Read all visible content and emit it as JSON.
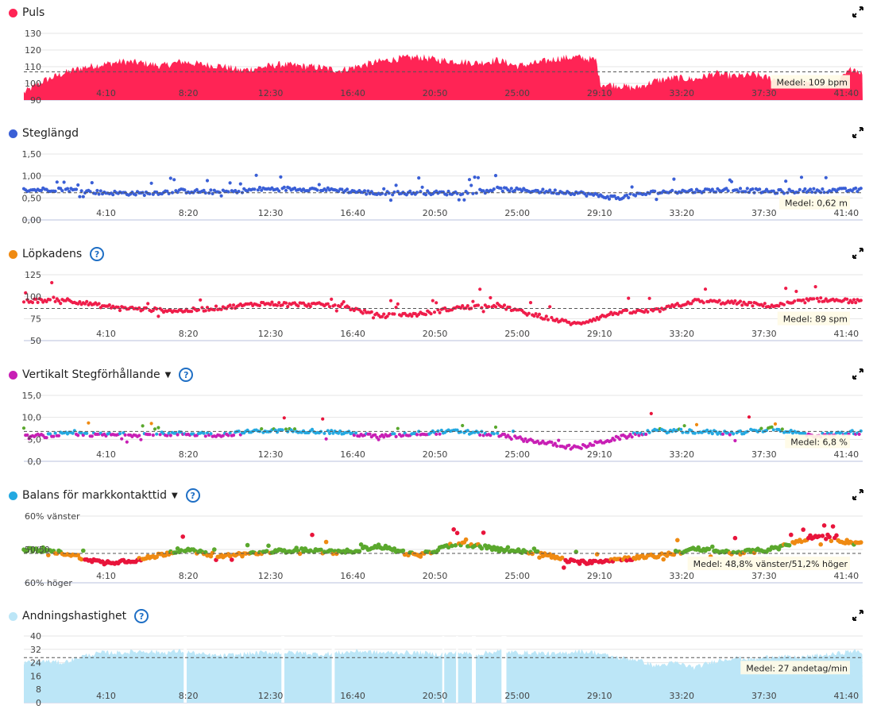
{
  "chart_data": [
    {
      "type": "area",
      "title": "Puls",
      "color": "#ff2455",
      "yticks": [
        "130",
        "120",
        "110",
        "100",
        "90"
      ],
      "ylim": [
        90,
        135
      ],
      "xticks": [
        "4:10",
        "8:20",
        "12:30",
        "16:40",
        "20:50",
        "25:00",
        "29:10",
        "33:20",
        "37:30",
        "41:40"
      ],
      "x_range": [
        "0:00",
        "42:30"
      ],
      "average": 109,
      "average_label": "Medel: 109 bpm",
      "series": [
        {
          "x": [
            0,
            1,
            2,
            3,
            4,
            5,
            6,
            7,
            8,
            9,
            10,
            11,
            12,
            13,
            14,
            15,
            16,
            17,
            18,
            19,
            20,
            21,
            22,
            23,
            24,
            25,
            26,
            27,
            28,
            29,
            29.2,
            30,
            31,
            32,
            33,
            34,
            35,
            36,
            37,
            38,
            39,
            40,
            41,
            42,
            42.5
          ],
          "values": [
            95,
            103,
            108,
            112,
            114,
            116,
            115,
            113,
            116,
            114,
            113,
            110,
            112,
            114,
            113,
            112,
            110,
            113,
            116,
            118,
            119,
            117,
            116,
            115,
            117,
            113,
            115,
            118,
            119,
            117,
            101,
            100,
            98,
            103,
            105,
            104,
            108,
            106,
            107,
            104,
            102,
            101,
            99,
            112,
            108
          ]
        }
      ]
    },
    {
      "type": "scatter",
      "title": "Steglängd",
      "color": "#3a5fd6",
      "yticks": [
        "1,50",
        "1,00",
        "0,50",
        "0,00"
      ],
      "ylim": [
        0,
        1.5
      ],
      "xticks": [
        "4:10",
        "8:20",
        "12:30",
        "16:40",
        "20:50",
        "25:00",
        "29:10",
        "33:20",
        "37:30",
        "41:40"
      ],
      "average": 0.62,
      "average_label": "Medel: 0,62 m",
      "series": [
        {
          "x": [
            0,
            2,
            4,
            6,
            8,
            10,
            12,
            14,
            16,
            18,
            20,
            22,
            24,
            26,
            28,
            30,
            32,
            34,
            36,
            38,
            40,
            42
          ],
          "values": [
            0.68,
            0.7,
            0.62,
            0.6,
            0.66,
            0.63,
            0.7,
            0.71,
            0.68,
            0.6,
            0.62,
            0.61,
            0.7,
            0.66,
            0.62,
            0.5,
            0.63,
            0.66,
            0.69,
            0.64,
            0.67,
            0.68
          ]
        }
      ]
    },
    {
      "type": "scatter",
      "title": "Löpkadens",
      "help": "?",
      "color": "#ef1d4a",
      "yticks": [
        "125",
        "100",
        "75",
        "50"
      ],
      "ylim": [
        50,
        130
      ],
      "xticks": [
        "4:10",
        "8:20",
        "12:30",
        "16:40",
        "20:50",
        "25:00",
        "29:10",
        "33:20",
        "37:30",
        "41:40"
      ],
      "average": 89,
      "average_label": "Medel: 89 spm",
      "series": [
        {
          "x": [
            0,
            2,
            4,
            6,
            8,
            10,
            12,
            14,
            16,
            18,
            20,
            22,
            24,
            26,
            28,
            30,
            32,
            34,
            36,
            38,
            40,
            42
          ],
          "values": [
            98,
            100,
            92,
            88,
            86,
            90,
            95,
            94,
            93,
            80,
            82,
            90,
            93,
            80,
            70,
            84,
            86,
            98,
            96,
            92,
            100,
            98
          ]
        }
      ]
    },
    {
      "type": "scatter",
      "title": "Vertikalt Stegförhållande",
      "help": "?",
      "caret": "▼",
      "colors": [
        "#24a9e1",
        "#c81fb5",
        "#e8143b",
        "#5aa82d",
        "#ef8a12"
      ],
      "yticks": [
        "15,0",
        "10,0",
        "5,0",
        "0,0"
      ],
      "ylim": [
        0,
        15
      ],
      "xticks": [
        "4:10",
        "8:20",
        "12:30",
        "16:40",
        "20:50",
        "25:00",
        "29:10",
        "33:20",
        "37:30",
        "41:40"
      ],
      "average": 6.8,
      "average_label": "Medel: 6,8 %",
      "series": [
        {
          "x": [
            0,
            2,
            4,
            6,
            8,
            10,
            12,
            14,
            16,
            18,
            20,
            22,
            24,
            26,
            28,
            30,
            32,
            34,
            36,
            38,
            40,
            42
          ],
          "values": [
            5.5,
            6.2,
            6.0,
            6.1,
            6.3,
            6.0,
            7.0,
            7.0,
            6.6,
            5.6,
            6.4,
            6.8,
            6.0,
            4.5,
            3.0,
            5.2,
            7.0,
            6.8,
            6.4,
            7.4,
            5.8,
            6.6
          ]
        }
      ]
    },
    {
      "type": "scatter",
      "title": "Balans för markkontakttid",
      "help": "?",
      "caret": "▼",
      "colors": [
        "#e8143b",
        "#ef8a12",
        "#5aa82d"
      ],
      "yticks": [
        "60% vänster",
        "50/50",
        "60% höger"
      ],
      "ylim": [
        40,
        60
      ],
      "xticks": [
        "4:10",
        "8:20",
        "12:30",
        "16:40",
        "20:50",
        "25:00",
        "29:10",
        "33:20",
        "37:30",
        "41:40"
      ],
      "average": 48.8,
      "average_label": "Medel: 48,8% vänster/51,2% höger",
      "series": [
        {
          "x": [
            0,
            2,
            4,
            6,
            8,
            10,
            12,
            14,
            16,
            18,
            20,
            22,
            24,
            26,
            28,
            30,
            32,
            34,
            36,
            38,
            40,
            42
          ],
          "values": [
            50,
            49,
            46,
            47,
            50,
            48,
            49,
            50,
            49,
            51,
            48,
            52,
            50,
            49,
            46,
            47,
            48,
            50,
            49,
            50,
            54,
            52
          ]
        }
      ]
    },
    {
      "type": "area",
      "title": "Andningshastighet",
      "help": "?",
      "color": "#bce6f7",
      "yticks": [
        "40",
        "32",
        "24",
        "16",
        "8",
        "0"
      ],
      "ylim": [
        0,
        40
      ],
      "xticks": [
        "4:10",
        "8:20",
        "12:30",
        "16:40",
        "20:50",
        "25:00",
        "29:10",
        "33:20",
        "37:30",
        "41:40"
      ],
      "average": 27,
      "average_label": "Medel: 27 andetag/min",
      "series": [
        {
          "x": [
            0,
            1,
            2,
            3,
            4,
            5,
            6,
            7,
            8,
            9,
            10,
            11,
            12,
            13,
            14,
            15,
            16,
            17,
            18,
            19,
            20,
            21,
            22,
            23,
            24,
            25,
            26,
            27,
            28,
            29,
            30,
            31,
            32,
            33,
            34,
            35,
            36,
            37,
            38,
            39,
            40,
            41,
            42,
            42.5
          ],
          "values": [
            24,
            25,
            24,
            28,
            30,
            30,
            31,
            30,
            31,
            29,
            28,
            29,
            30,
            30,
            30,
            29,
            30,
            31,
            30,
            30,
            30,
            29,
            30,
            29,
            31,
            30,
            30,
            29,
            31,
            30,
            27,
            26,
            22,
            24,
            21,
            25,
            27,
            26,
            28,
            27,
            28,
            29,
            31,
            30
          ]
        }
      ]
    }
  ]
}
